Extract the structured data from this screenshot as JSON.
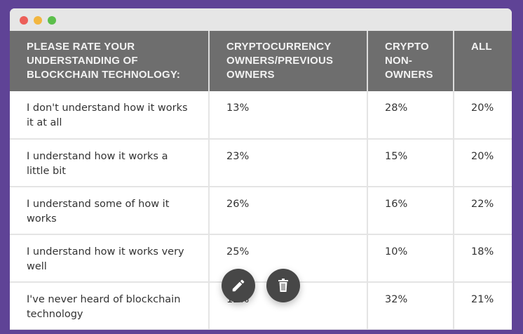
{
  "window": {
    "controls": [
      "close",
      "minimize",
      "maximize"
    ],
    "colors": {
      "close": "#ec5f59",
      "minimize": "#f2b640",
      "maximize": "#5cbf4b",
      "background": "#5f4396"
    }
  },
  "table": {
    "headers": [
      "PLEASE RATE YOUR UNDERSTANDING OF BLOCKCHAIN TECHNOLOGY:",
      "CRYPTOCURRENCY OWNERS/PREVIOUS OWNERS",
      "CRYPTO NON-OWNERS",
      "ALL"
    ],
    "rows": [
      [
        "I don't understand how it works it at all",
        "13%",
        "28%",
        "20%"
      ],
      [
        "I understand how it works a little bit",
        "23%",
        "15%",
        "20%"
      ],
      [
        "I understand some of how it works",
        "26%",
        "16%",
        "22%"
      ],
      [
        "I understand how it works very well",
        "25%",
        "10%",
        "18%"
      ],
      [
        "I've never heard of blockchain technology",
        "12%",
        "32%",
        "21%"
      ]
    ]
  },
  "actions": [
    {
      "icon": "pencil-icon",
      "name": "edit"
    },
    {
      "icon": "trash-icon",
      "name": "delete"
    }
  ]
}
